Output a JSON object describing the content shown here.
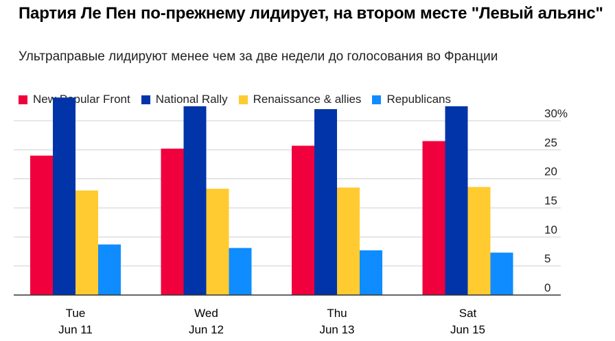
{
  "chart_data": {
    "type": "bar",
    "title": "Партия Ле Пен по-прежнему лидирует, на втором месте \"Левый альянс\"",
    "subtitle": "Ультраправые лидируют менее чем за две недели до голосования во Франции",
    "categories": [
      {
        "line1": "Tue",
        "line2": "Jun 11"
      },
      {
        "line1": "Wed",
        "line2": "Jun 12"
      },
      {
        "line1": "Thu",
        "line2": "Jun 13"
      },
      {
        "line1": "Sat",
        "line2": "Jun 15"
      }
    ],
    "series": [
      {
        "name": "New Popular Front",
        "color": "#f0003c",
        "values": [
          24,
          25.2,
          25.7,
          26.5
        ]
      },
      {
        "name": "National Rally",
        "color": "#0034a8",
        "values": [
          34,
          32.5,
          32,
          32.5
        ]
      },
      {
        "name": "Renaissance & allies",
        "color": "#ffcb30",
        "values": [
          18,
          18.3,
          18.5,
          18.6
        ]
      },
      {
        "name": "Republicans",
        "color": "#0f8cff",
        "values": [
          8.7,
          8.1,
          7.7,
          7.3
        ]
      }
    ],
    "y_ticks": [
      "30%",
      "25",
      "20",
      "15",
      "10",
      "5",
      "0"
    ],
    "y_tick_values": [
      30,
      25,
      20,
      15,
      10,
      5,
      0
    ],
    "ylim": [
      0,
      30
    ],
    "gridlines": true,
    "legend_position": "top-left"
  }
}
